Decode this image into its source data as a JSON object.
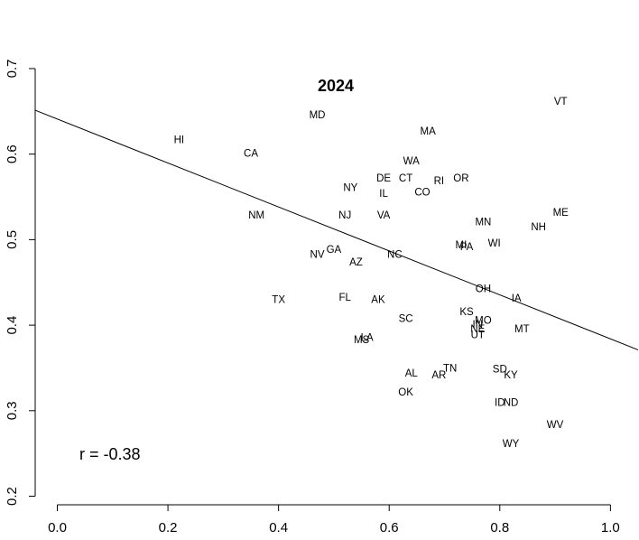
{
  "chart_data": {
    "type": "scatter",
    "title": "2024",
    "xlabel": "",
    "ylabel": "",
    "xlim": [
      -0.04,
      1.05
    ],
    "ylim": [
      0.19,
      0.72
    ],
    "xticks": [
      "0.0",
      "0.2",
      "0.4",
      "0.6",
      "0.8",
      "1.0"
    ],
    "yticks": [
      "0.2",
      "0.3",
      "0.4",
      "0.5",
      "0.6",
      "0.7"
    ],
    "grid": false,
    "legend": "none",
    "annotation": "r = -0.38",
    "fit_line": {
      "intercept": 0.641,
      "slope": -0.257
    },
    "points": [
      {
        "label": "VT",
        "x": 0.91,
        "y": 0.662
      },
      {
        "label": "MD",
        "x": 0.47,
        "y": 0.646
      },
      {
        "label": "MA",
        "x": 0.67,
        "y": 0.627
      },
      {
        "label": "HI",
        "x": 0.22,
        "y": 0.617
      },
      {
        "label": "CA",
        "x": 0.35,
        "y": 0.601
      },
      {
        "label": "WA",
        "x": 0.64,
        "y": 0.592
      },
      {
        "label": "OR",
        "x": 0.73,
        "y": 0.572
      },
      {
        "label": "DE",
        "x": 0.59,
        "y": 0.572
      },
      {
        "label": "CT",
        "x": 0.63,
        "y": 0.572
      },
      {
        "label": "RI",
        "x": 0.69,
        "y": 0.569
      },
      {
        "label": "NY",
        "x": 0.53,
        "y": 0.561
      },
      {
        "label": "IL",
        "x": 0.59,
        "y": 0.554
      },
      {
        "label": "CO",
        "x": 0.66,
        "y": 0.556
      },
      {
        "label": "ME",
        "x": 0.91,
        "y": 0.532
      },
      {
        "label": "NM",
        "x": 0.36,
        "y": 0.529
      },
      {
        "label": "NJ",
        "x": 0.52,
        "y": 0.529
      },
      {
        "label": "VA",
        "x": 0.59,
        "y": 0.529
      },
      {
        "label": "MN",
        "x": 0.77,
        "y": 0.521
      },
      {
        "label": "NH",
        "x": 0.87,
        "y": 0.515
      },
      {
        "label": "WI",
        "x": 0.79,
        "y": 0.496
      },
      {
        "label": "MI",
        "x": 0.73,
        "y": 0.494
      },
      {
        "label": "PA",
        "x": 0.74,
        "y": 0.492
      },
      {
        "label": "GA",
        "x": 0.5,
        "y": 0.489
      },
      {
        "label": "NV",
        "x": 0.47,
        "y": 0.483
      },
      {
        "label": "NC",
        "x": 0.61,
        "y": 0.483
      },
      {
        "label": "AZ",
        "x": 0.54,
        "y": 0.474
      },
      {
        "label": "OH",
        "x": 0.77,
        "y": 0.443
      },
      {
        "label": "FL",
        "x": 0.52,
        "y": 0.433
      },
      {
        "label": "IA",
        "x": 0.83,
        "y": 0.432
      },
      {
        "label": "TX",
        "x": 0.4,
        "y": 0.43
      },
      {
        "label": "AK",
        "x": 0.58,
        "y": 0.43
      },
      {
        "label": "KS",
        "x": 0.74,
        "y": 0.416
      },
      {
        "label": "SC",
        "x": 0.63,
        "y": 0.408
      },
      {
        "label": "MO",
        "x": 0.77,
        "y": 0.406
      },
      {
        "label": "IN",
        "x": 0.76,
        "y": 0.401
      },
      {
        "label": "NE",
        "x": 0.76,
        "y": 0.396
      },
      {
        "label": "MT",
        "x": 0.84,
        "y": 0.396
      },
      {
        "label": "UT",
        "x": 0.76,
        "y": 0.389
      },
      {
        "label": "LA",
        "x": 0.56,
        "y": 0.386
      },
      {
        "label": "MS",
        "x": 0.55,
        "y": 0.383
      },
      {
        "label": "TN",
        "x": 0.71,
        "y": 0.35
      },
      {
        "label": "SD",
        "x": 0.8,
        "y": 0.349
      },
      {
        "label": "AL",
        "x": 0.64,
        "y": 0.344
      },
      {
        "label": "AR",
        "x": 0.69,
        "y": 0.342
      },
      {
        "label": "KY",
        "x": 0.82,
        "y": 0.342
      },
      {
        "label": "OK",
        "x": 0.63,
        "y": 0.322
      },
      {
        "label": "ID",
        "x": 0.8,
        "y": 0.31
      },
      {
        "label": "ND",
        "x": 0.82,
        "y": 0.31
      },
      {
        "label": "WV",
        "x": 0.9,
        "y": 0.284
      },
      {
        "label": "WY",
        "x": 0.82,
        "y": 0.262
      }
    ]
  }
}
